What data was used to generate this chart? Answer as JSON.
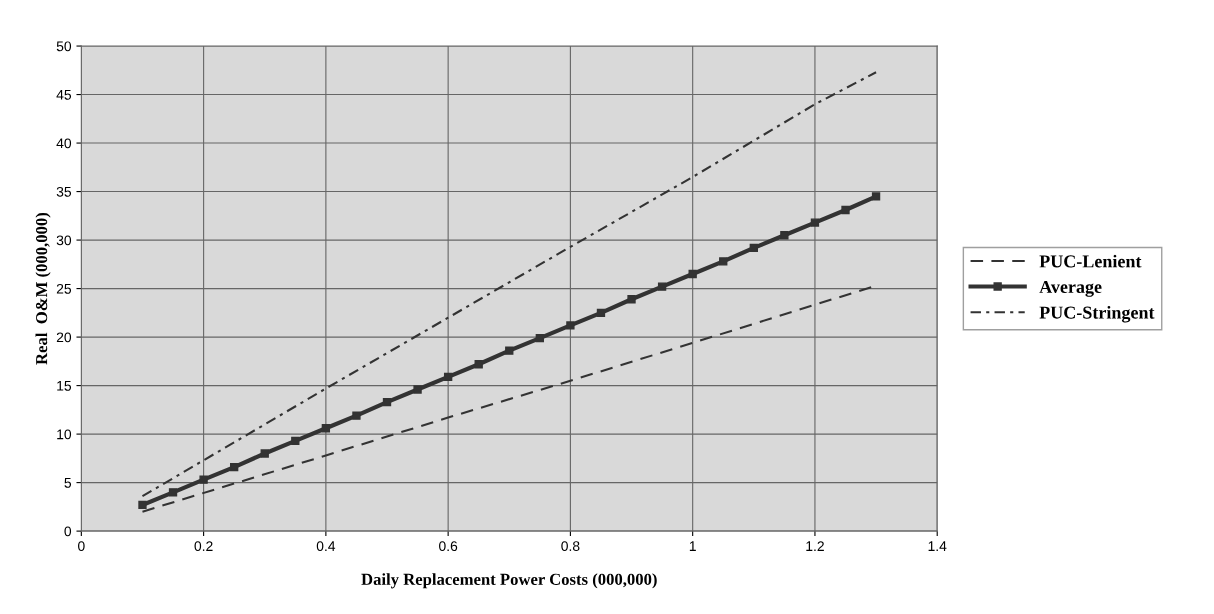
{
  "chart_data": {
    "type": "line",
    "xlabel": "Daily Replacement Power Costs (000,000)",
    "ylabel": "Real  O&M (000,000)",
    "xlim": [
      0,
      1.4
    ],
    "xticks": [
      0,
      0.2,
      0.4,
      0.6,
      0.8,
      1,
      1.2,
      1.4
    ],
    "ylim": [
      0,
      50
    ],
    "yticks": [
      0,
      5,
      10,
      15,
      20,
      25,
      30,
      35,
      40,
      45,
      50
    ],
    "grid": true,
    "legend": "right",
    "series": [
      {
        "name": "PUC-Lenient",
        "color": "#333333",
        "line_style": "dashed",
        "marker": "none",
        "x": [
          0.1,
          0.4,
          0.6,
          0.8,
          1.0,
          1.3
        ],
        "values": [
          2.0,
          7.8,
          11.7,
          15.5,
          19.4,
          25.3
        ]
      },
      {
        "name": "Average",
        "color": "#333333",
        "line_style": "solid",
        "marker": "square",
        "x": [
          0.1,
          0.15,
          0.2,
          0.25,
          0.3,
          0.35,
          0.4,
          0.45,
          0.5,
          0.55,
          0.6,
          0.65,
          0.7,
          0.75,
          0.8,
          0.85,
          0.9,
          0.95,
          1.0,
          1.05,
          1.1,
          1.15,
          1.2,
          1.25,
          1.3
        ],
        "values": [
          2.7,
          4.0,
          5.3,
          6.6,
          8.0,
          9.3,
          10.6,
          11.9,
          13.3,
          14.6,
          15.9,
          17.2,
          18.6,
          19.9,
          21.2,
          22.5,
          23.9,
          25.2,
          26.5,
          27.8,
          29.2,
          30.5,
          31.8,
          33.1,
          34.5
        ]
      },
      {
        "name": "PUC-Stringent",
        "color": "#333333",
        "line_style": "dashdot",
        "marker": "none",
        "x": [
          0.1,
          0.4,
          0.6,
          0.8,
          1.0,
          1.2,
          1.3
        ],
        "values": [
          3.6,
          14.7,
          22.0,
          29.3,
          36.5,
          44.0,
          47.3
        ]
      }
    ]
  }
}
